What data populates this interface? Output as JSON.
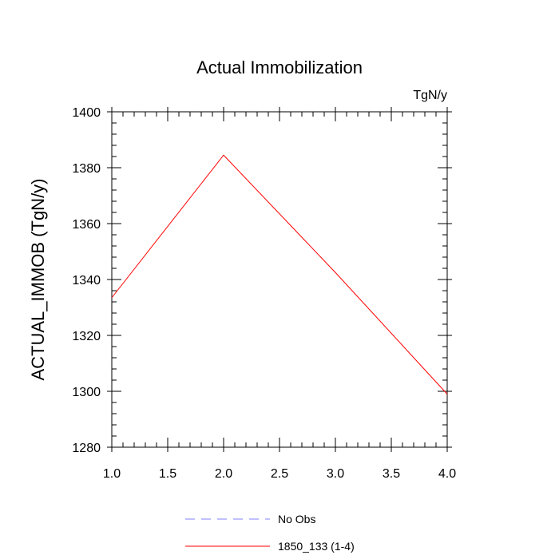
{
  "chart_data": {
    "type": "line",
    "title": "Actual Immobilization",
    "units_label": "TgN/y",
    "xlabel": "",
    "ylabel": "ACTUAL_IMMOB  (TgN/y)",
    "xlim": [
      1.0,
      4.0
    ],
    "ylim": [
      1280,
      1400
    ],
    "x_ticks": [
      1.0,
      1.5,
      2.0,
      2.5,
      3.0,
      3.5,
      4.0
    ],
    "x_tick_labels": [
      "1.0",
      "1.5",
      "2.0",
      "2.5",
      "3.0",
      "3.5",
      "4.0"
    ],
    "y_ticks": [
      1280,
      1300,
      1320,
      1340,
      1360,
      1380,
      1400
    ],
    "y_tick_labels": [
      "1280",
      "1300",
      "1320",
      "1340",
      "1360",
      "1380",
      "1400"
    ],
    "grid": false,
    "legend_position": "bottom-center",
    "series": [
      {
        "name": "No Obs",
        "color": "#8080ff",
        "dash": "dashed",
        "x": [],
        "y": []
      },
      {
        "name": "1850_133 (1-4)",
        "color": "#ff0000",
        "dash": "solid",
        "x": [
          1.0,
          2.0,
          3.0,
          4.0
        ],
        "y": [
          1333.5,
          1384.5,
          1342.5,
          1299.0
        ]
      }
    ]
  }
}
